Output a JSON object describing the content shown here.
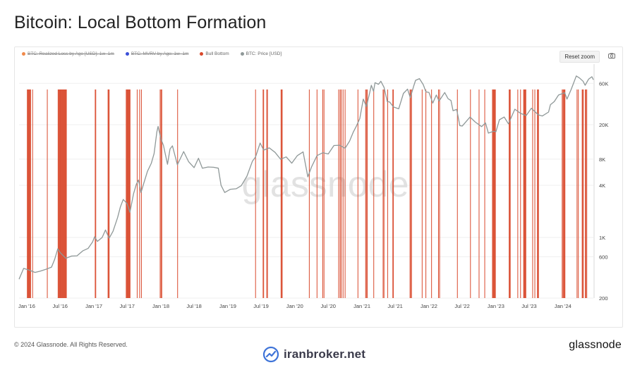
{
  "page": {
    "title": "Bitcoin: Local Bottom Formation",
    "copyright": "© 2024 Glassnode. All Rights Reserved.",
    "brand": "glassnode",
    "watermark_chart": "glassnode",
    "watermark_site": "iranbroker.net"
  },
  "toolbar": {
    "reset_zoom_label": "Reset zoom",
    "camera_icon": "camera-icon"
  },
  "legend": [
    {
      "label": "BTC: Realized Loss by Age [USD]: 1w–1m",
      "color": "#f08a4b",
      "hidden": true
    },
    {
      "label": "BTC: MVRV by Age: 1w–1m",
      "color": "#3b4fd8",
      "hidden": true
    },
    {
      "label": "Bull Bottom",
      "color": "#d9482b",
      "hidden": false
    },
    {
      "label": "BTC: Price [USD]",
      "color": "#8f9898",
      "hidden": false
    }
  ],
  "chart_data": {
    "type": "line",
    "title": "Bitcoin: Local Bottom Formation",
    "yscale": "log",
    "ylim": [
      200,
      100000
    ],
    "xlim": [
      "2015-11-20",
      "2024-06-15"
    ],
    "yticks": [
      200,
      600,
      1000,
      4000,
      8000,
      20000,
      60000
    ],
    "ytick_labels": [
      "200",
      "600",
      "1K",
      "4K",
      "8K",
      "20K",
      "60K"
    ],
    "xticks": [
      "2016-01-01",
      "2016-07-01",
      "2017-01-01",
      "2017-07-01",
      "2018-01-01",
      "2018-07-01",
      "2019-01-01",
      "2019-07-01",
      "2020-01-01",
      "2020-07-01",
      "2021-01-01",
      "2021-07-01",
      "2022-01-01",
      "2022-07-01",
      "2023-01-01",
      "2023-07-01",
      "2024-01-01"
    ],
    "xtick_labels": [
      "Jan '16",
      "Jul '16",
      "Jan '17",
      "Jul '17",
      "Jan '18",
      "Jul '18",
      "Jan '19",
      "Jul '19",
      "Jan '20",
      "Jul '20",
      "Jan '21",
      "Jul '21",
      "Jan '22",
      "Jul '22",
      "Jan '23",
      "Jul '23",
      "Jan '24"
    ],
    "series": [
      {
        "name": "BTC: Price [USD]",
        "color": "#8f9898",
        "x": [
          "2015-11-20",
          "2015-12-15",
          "2016-01-15",
          "2016-02-15",
          "2016-03-15",
          "2016-04-15",
          "2016-05-15",
          "2016-06-01",
          "2016-06-18",
          "2016-07-01",
          "2016-08-01",
          "2016-09-01",
          "2016-10-01",
          "2016-11-01",
          "2016-12-01",
          "2016-12-25",
          "2017-01-05",
          "2017-01-20",
          "2017-02-15",
          "2017-03-05",
          "2017-03-25",
          "2017-04-15",
          "2017-05-10",
          "2017-05-25",
          "2017-06-10",
          "2017-07-01",
          "2017-07-16",
          "2017-08-05",
          "2017-08-20",
          "2017-09-01",
          "2017-09-15",
          "2017-10-01",
          "2017-10-20",
          "2017-11-10",
          "2017-11-25",
          "2017-12-10",
          "2017-12-17",
          "2018-01-01",
          "2018-01-15",
          "2018-02-06",
          "2018-02-20",
          "2018-03-05",
          "2018-04-01",
          "2018-05-05",
          "2018-06-01",
          "2018-07-01",
          "2018-07-25",
          "2018-08-15",
          "2018-09-15",
          "2018-10-15",
          "2018-11-10",
          "2018-11-25",
          "2018-12-15",
          "2019-01-15",
          "2019-02-15",
          "2019-03-15",
          "2019-04-15",
          "2019-05-15",
          "2019-06-01",
          "2019-06-26",
          "2019-07-15",
          "2019-08-15",
          "2019-09-15",
          "2019-10-15",
          "2019-11-15",
          "2019-12-15",
          "2020-01-15",
          "2020-02-15",
          "2020-03-12",
          "2020-04-01",
          "2020-05-01",
          "2020-06-01",
          "2020-07-01",
          "2020-08-01",
          "2020-09-01",
          "2020-10-01",
          "2020-10-25",
          "2020-11-15",
          "2020-12-01",
          "2020-12-20",
          "2021-01-08",
          "2021-01-25",
          "2021-02-10",
          "2021-02-21",
          "2021-03-05",
          "2021-03-13",
          "2021-04-01",
          "2021-04-14",
          "2021-05-01",
          "2021-05-19",
          "2021-06-01",
          "2021-06-22",
          "2021-07-20",
          "2021-08-15",
          "2021-09-06",
          "2021-09-21",
          "2021-10-10",
          "2021-10-20",
          "2021-11-10",
          "2021-12-01",
          "2021-12-15",
          "2022-01-01",
          "2022-01-22",
          "2022-02-10",
          "2022-02-25",
          "2022-03-28",
          "2022-04-15",
          "2022-05-01",
          "2022-05-12",
          "2022-06-01",
          "2022-06-18",
          "2022-07-01",
          "2022-08-13",
          "2022-09-10",
          "2022-10-15",
          "2022-11-05",
          "2022-11-21",
          "2022-12-20",
          "2023-01-01",
          "2023-01-20",
          "2023-02-15",
          "2023-03-10",
          "2023-04-14",
          "2023-05-15",
          "2023-06-15",
          "2023-07-13",
          "2023-08-20",
          "2023-09-11",
          "2023-10-15",
          "2023-10-25",
          "2023-11-15",
          "2023-12-08",
          "2024-01-11",
          "2024-01-23",
          "2024-02-15",
          "2024-03-14",
          "2024-04-01",
          "2024-04-20",
          "2024-05-01",
          "2024-05-20",
          "2024-06-07",
          "2024-06-15"
        ],
        "y": [
          330,
          440,
          420,
          395,
          410,
          430,
          455,
          560,
          740,
          670,
          575,
          610,
          615,
          700,
          750,
          890,
          1020,
          900,
          1000,
          1220,
          980,
          1180,
          1700,
          2250,
          2750,
          2450,
          1950,
          3200,
          4100,
          4600,
          3300,
          4300,
          5800,
          7200,
          9300,
          16500,
          19100,
          13800,
          11500,
          7000,
          10500,
          11400,
          6900,
          9800,
          7500,
          6400,
          8200,
          6300,
          6500,
          6450,
          6300,
          4000,
          3300,
          3600,
          3650,
          3950,
          5100,
          7600,
          8500,
          12300,
          10200,
          10800,
          9600,
          8000,
          8500,
          7200,
          8800,
          9700,
          5000,
          6500,
          8800,
          9500,
          9200,
          11500,
          11600,
          10700,
          12900,
          16500,
          19200,
          23500,
          39500,
          32300,
          45000,
          57000,
          48500,
          61000,
          58500,
          63500,
          54000,
          37000,
          36500,
          32000,
          30500,
          46000,
          51500,
          41000,
          56000,
          65000,
          68000,
          58000,
          48000,
          47000,
          35500,
          44000,
          37500,
          47000,
          40000,
          38000,
          29000,
          30000,
          19500,
          19300,
          24500,
          21500,
          19000,
          21000,
          16000,
          16800,
          16600,
          22800,
          24500,
          20500,
          30200,
          27000,
          25500,
          31000,
          26000,
          25200,
          28000,
          34000,
          37000,
          44000,
          46800,
          39500,
          51000,
          73000,
          69000,
          63500,
          57000,
          67000,
          71500,
          66000
        ]
      }
    ],
    "bull_bottom": {
      "name": "Bull Bottom",
      "color": "#d9482b",
      "dates": [
        "2016-01-04",
        "2016-01-07",
        "2016-01-10",
        "2016-01-13",
        "2016-01-16",
        "2016-01-19",
        "2016-01-22",
        "2016-02-02",
        "2016-04-22",
        "2016-06-20",
        "2016-06-23",
        "2016-06-26",
        "2016-06-29",
        "2016-07-02",
        "2016-07-05",
        "2016-07-08",
        "2016-07-11",
        "2016-07-14",
        "2016-07-17",
        "2016-07-20",
        "2016-07-23",
        "2016-07-26",
        "2016-07-29",
        "2016-08-01",
        "2016-08-04",
        "2017-01-08",
        "2017-01-11",
        "2017-03-19",
        "2017-03-22",
        "2017-03-25",
        "2017-06-26",
        "2017-06-29",
        "2017-07-02",
        "2017-07-05",
        "2017-07-08",
        "2017-07-11",
        "2017-07-14",
        "2017-07-17",
        "2017-08-25",
        "2017-09-07",
        "2017-09-17",
        "2017-12-28",
        "2018-01-02",
        "2018-01-06",
        "2018-04-02",
        "2019-06-01",
        "2019-07-12",
        "2019-07-15",
        "2019-08-01",
        "2019-08-05",
        "2019-10-18",
        "2019-10-21",
        "2019-10-24",
        "2020-03-20",
        "2020-05-01",
        "2020-06-01",
        "2020-06-08",
        "2020-08-27",
        "2020-09-04",
        "2020-09-10",
        "2020-09-20",
        "2020-10-01",
        "2020-12-10",
        "2021-01-21",
        "2021-01-25",
        "2021-01-30",
        "2021-03-06",
        "2021-04-26",
        "2021-05-01",
        "2021-05-21",
        "2021-06-18",
        "2021-06-21",
        "2021-09-20",
        "2021-09-23",
        "2021-09-28",
        "2021-11-25",
        "2021-12-15",
        "2022-01-15",
        "2022-02-22",
        "2022-02-28",
        "2022-06-05",
        "2022-08-15",
        "2022-10-01",
        "2022-11-01",
        "2022-12-13",
        "2022-12-17",
        "2022-12-20",
        "2022-12-23",
        "2022-12-26",
        "2022-12-29",
        "2023-03-14",
        "2023-03-17",
        "2023-03-20",
        "2023-04-30",
        "2023-05-15",
        "2023-06-01",
        "2023-06-04",
        "2023-06-07",
        "2023-06-10",
        "2023-06-13",
        "2023-07-20",
        "2023-08-01",
        "2023-08-15",
        "2023-08-18",
        "2023-08-21",
        "2023-12-28",
        "2024-01-02",
        "2024-01-06",
        "2024-01-09",
        "2024-01-12",
        "2024-03-18",
        "2024-03-25",
        "2024-04-15",
        "2024-04-18",
        "2024-04-21",
        "2024-05-02",
        "2024-05-05",
        "2024-05-10"
      ]
    }
  }
}
